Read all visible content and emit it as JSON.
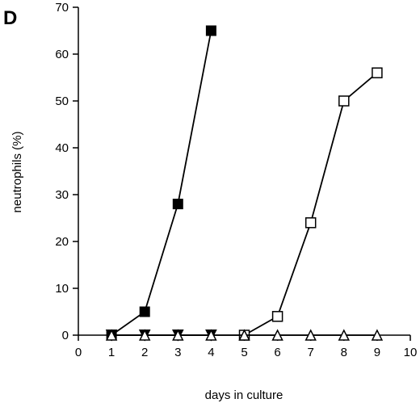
{
  "chart_data": {
    "type": "line",
    "panel_label": "D",
    "title": "",
    "xlabel": "days in culture",
    "ylabel": "neutrophils (%)",
    "xlim": [
      0,
      10
    ],
    "ylim": [
      0,
      70
    ],
    "x_ticks": [
      0,
      1,
      2,
      3,
      4,
      5,
      6,
      7,
      8,
      9,
      10
    ],
    "y_ticks": [
      0,
      10,
      20,
      30,
      40,
      50,
      60,
      70
    ],
    "grid": false,
    "legend": "none",
    "series": [
      {
        "marker": "filled-square",
        "color": "#000000",
        "x": [
          1,
          2,
          3,
          4
        ],
        "y": [
          0,
          5,
          28,
          65
        ]
      },
      {
        "marker": "open-square",
        "color": "#000000",
        "x": [
          5,
          6,
          7,
          8,
          9
        ],
        "y": [
          0,
          4,
          24,
          50,
          56
        ]
      },
      {
        "marker": "filled-triangle-down",
        "color": "#000000",
        "x": [
          1,
          2,
          3,
          4
        ],
        "y": [
          0,
          0,
          0,
          0
        ]
      },
      {
        "marker": "open-triangle-up",
        "color": "#000000",
        "x": [
          1,
          2,
          3,
          4,
          5,
          6,
          7,
          8,
          9
        ],
        "y": [
          0,
          0,
          0,
          0,
          0,
          0,
          0,
          0,
          0
        ]
      }
    ]
  }
}
